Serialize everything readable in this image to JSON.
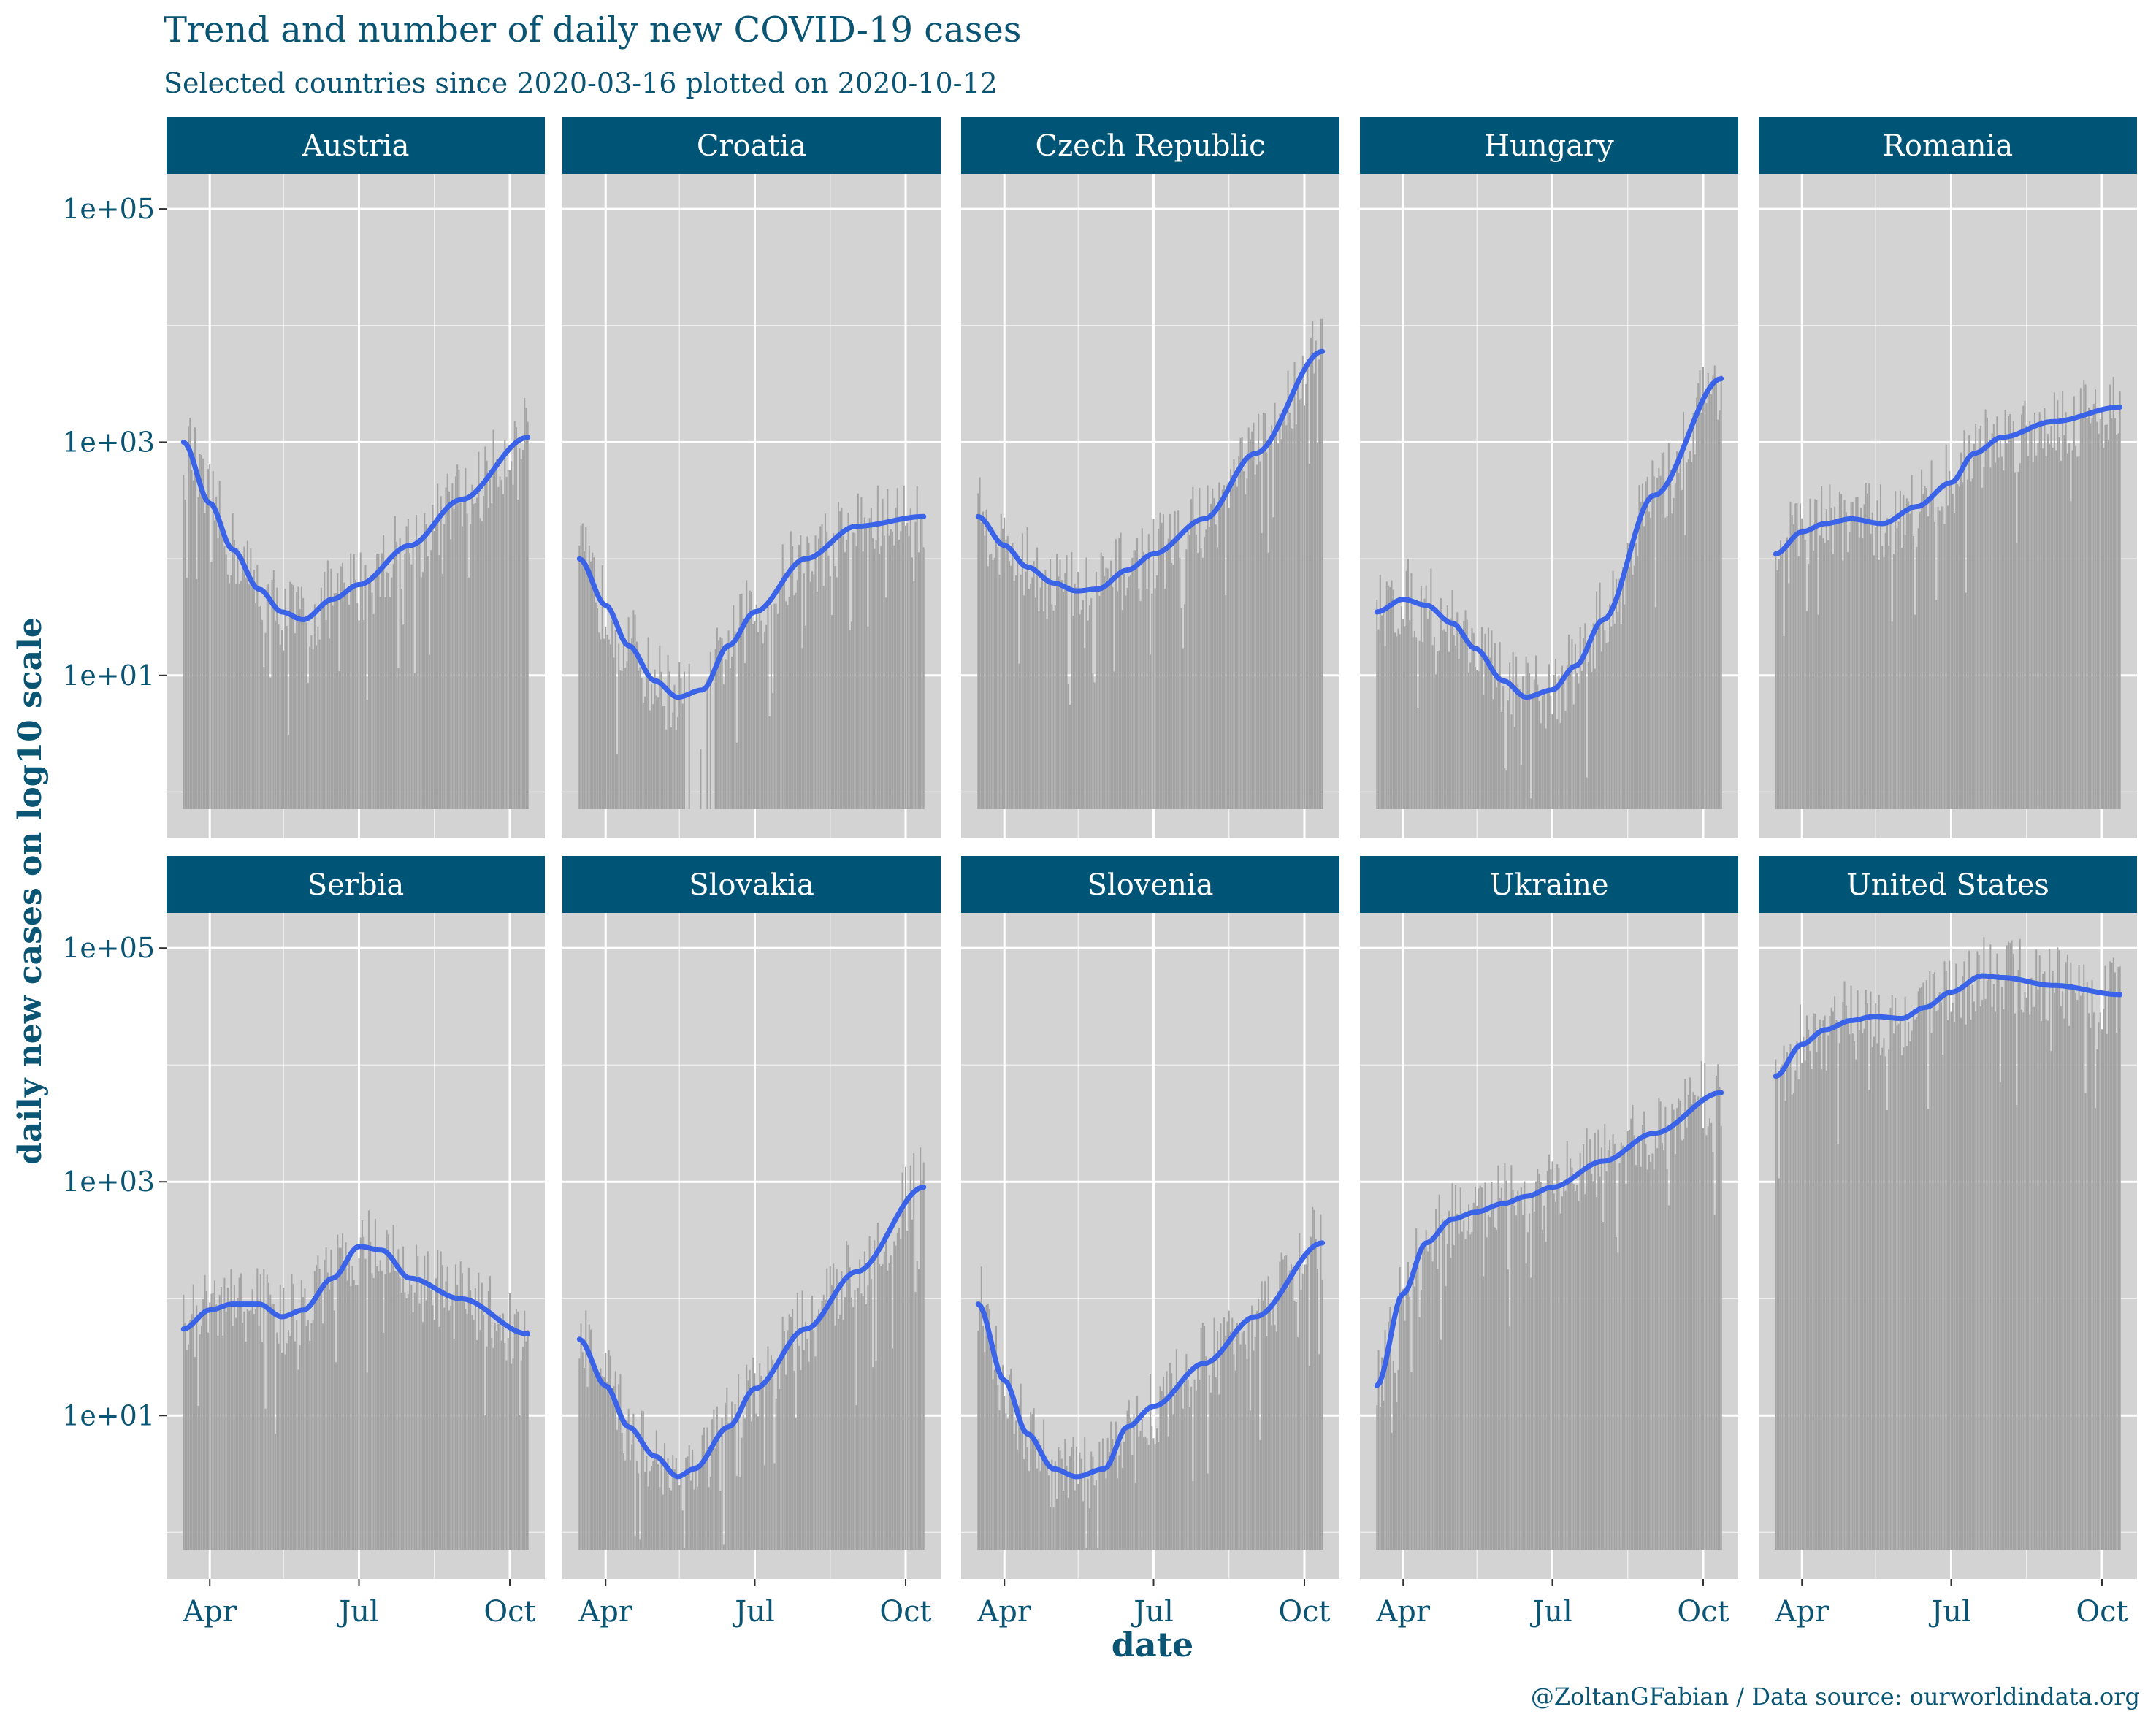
{
  "title": "Trend and number of daily new COVID-19 cases",
  "subtitle": "Selected countries since 2020-03-16 plotted on 2020-10-12",
  "caption": "@ZoltanGFabian / Data source: ourworldindata.org",
  "colors": {
    "strip": "#005576",
    "text": "#0b5574",
    "panel": "#d3d3d3",
    "bar": "#a3a3a3",
    "trend": "#3a63e8",
    "grid": "#ffffff"
  },
  "chart_data": {
    "type": "bar",
    "y_scale": "log10",
    "xlabel": "date",
    "ylabel": "daily new cases on log10 scale",
    "x_range": [
      "2020-03-16",
      "2020-10-12"
    ],
    "ylim": [
      0.4,
      200000
    ],
    "x_ticks": [
      "Apr",
      "Jul",
      "Oct"
    ],
    "y_ticks": [
      "1e+01",
      "1e+03",
      "1e+05"
    ],
    "grid": true,
    "facets": [
      {
        "name": "Austria",
        "trend": [
          [
            "2020-03-16",
            1000
          ],
          [
            "2020-04-01",
            300
          ],
          [
            "2020-04-15",
            120
          ],
          [
            "2020-05-01",
            55
          ],
          [
            "2020-05-15",
            35
          ],
          [
            "2020-05-28",
            30
          ],
          [
            "2020-06-15",
            45
          ],
          [
            "2020-07-01",
            60
          ],
          [
            "2020-08-01",
            130
          ],
          [
            "2020-09-01",
            320
          ],
          [
            "2020-10-12",
            1100
          ]
        ]
      },
      {
        "name": "Croatia",
        "trend": [
          [
            "2020-03-16",
            100
          ],
          [
            "2020-04-01",
            40
          ],
          [
            "2020-04-15",
            18
          ],
          [
            "2020-05-01",
            9
          ],
          [
            "2020-05-15",
            6.5
          ],
          [
            "2020-05-30",
            7.5
          ],
          [
            "2020-06-15",
            18
          ],
          [
            "2020-07-01",
            35
          ],
          [
            "2020-08-01",
            100
          ],
          [
            "2020-09-01",
            190
          ],
          [
            "2020-10-12",
            230
          ]
        ]
      },
      {
        "name": "Czech Republic",
        "trend": [
          [
            "2020-03-16",
            230
          ],
          [
            "2020-04-01",
            130
          ],
          [
            "2020-04-15",
            85
          ],
          [
            "2020-05-01",
            62
          ],
          [
            "2020-05-15",
            53
          ],
          [
            "2020-05-28",
            55
          ],
          [
            "2020-06-15",
            80
          ],
          [
            "2020-07-01",
            110
          ],
          [
            "2020-08-01",
            220
          ],
          [
            "2020-09-01",
            800
          ],
          [
            "2020-10-12",
            6000
          ]
        ]
      },
      {
        "name": "Hungary",
        "trend": [
          [
            "2020-03-16",
            35
          ],
          [
            "2020-04-01",
            45
          ],
          [
            "2020-04-15",
            40
          ],
          [
            "2020-05-01",
            28
          ],
          [
            "2020-05-15",
            17
          ],
          [
            "2020-06-01",
            9
          ],
          [
            "2020-06-15",
            6.5
          ],
          [
            "2020-07-01",
            7.5
          ],
          [
            "2020-07-15",
            12
          ],
          [
            "2020-08-01",
            30
          ],
          [
            "2020-09-01",
            350
          ],
          [
            "2020-10-12",
            3500
          ]
        ]
      },
      {
        "name": "Romania",
        "trend": [
          [
            "2020-03-16",
            110
          ],
          [
            "2020-04-01",
            170
          ],
          [
            "2020-04-15",
            200
          ],
          [
            "2020-05-01",
            220
          ],
          [
            "2020-05-20",
            200
          ],
          [
            "2020-06-10",
            280
          ],
          [
            "2020-07-01",
            450
          ],
          [
            "2020-07-15",
            800
          ],
          [
            "2020-08-01",
            1100
          ],
          [
            "2020-09-01",
            1500
          ],
          [
            "2020-10-12",
            2000
          ]
        ]
      },
      {
        "name": "Serbia",
        "trend": [
          [
            "2020-03-16",
            55
          ],
          [
            "2020-04-01",
            80
          ],
          [
            "2020-04-15",
            90
          ],
          [
            "2020-05-01",
            90
          ],
          [
            "2020-05-15",
            70
          ],
          [
            "2020-05-28",
            80
          ],
          [
            "2020-06-15",
            150
          ],
          [
            "2020-07-01",
            280
          ],
          [
            "2020-07-15",
            260
          ],
          [
            "2020-08-01",
            150
          ],
          [
            "2020-09-01",
            100
          ],
          [
            "2020-10-12",
            50
          ]
        ]
      },
      {
        "name": "Slovakia",
        "trend": [
          [
            "2020-03-16",
            45
          ],
          [
            "2020-04-01",
            18
          ],
          [
            "2020-04-15",
            8
          ],
          [
            "2020-05-01",
            4.5
          ],
          [
            "2020-05-15",
            3
          ],
          [
            "2020-05-25",
            3.5
          ],
          [
            "2020-06-15",
            8
          ],
          [
            "2020-07-01",
            17
          ],
          [
            "2020-08-01",
            55
          ],
          [
            "2020-09-01",
            170
          ],
          [
            "2020-10-12",
            900
          ]
        ]
      },
      {
        "name": "Slovenia",
        "trend": [
          [
            "2020-03-16",
            90
          ],
          [
            "2020-04-01",
            20
          ],
          [
            "2020-04-15",
            7
          ],
          [
            "2020-05-01",
            3.5
          ],
          [
            "2020-05-15",
            3
          ],
          [
            "2020-06-01",
            3.5
          ],
          [
            "2020-06-15",
            8
          ],
          [
            "2020-07-01",
            12
          ],
          [
            "2020-08-01",
            28
          ],
          [
            "2020-09-01",
            70
          ],
          [
            "2020-10-12",
            300
          ]
        ]
      },
      {
        "name": "Ukraine",
        "trend": [
          [
            "2020-03-16",
            18
          ],
          [
            "2020-04-01",
            110
          ],
          [
            "2020-04-15",
            300
          ],
          [
            "2020-05-01",
            480
          ],
          [
            "2020-05-15",
            550
          ],
          [
            "2020-06-01",
            650
          ],
          [
            "2020-06-15",
            750
          ],
          [
            "2020-07-01",
            900
          ],
          [
            "2020-08-01",
            1500
          ],
          [
            "2020-09-01",
            2600
          ],
          [
            "2020-10-12",
            5800
          ]
        ]
      },
      {
        "name": "United States",
        "trend": [
          [
            "2020-03-16",
            8000
          ],
          [
            "2020-04-01",
            15000
          ],
          [
            "2020-04-15",
            20000
          ],
          [
            "2020-05-01",
            24000
          ],
          [
            "2020-05-15",
            26000
          ],
          [
            "2020-06-01",
            25000
          ],
          [
            "2020-06-15",
            31000
          ],
          [
            "2020-07-01",
            42000
          ],
          [
            "2020-07-20",
            58000
          ],
          [
            "2020-08-01",
            56000
          ],
          [
            "2020-09-01",
            48000
          ],
          [
            "2020-10-12",
            40000
          ]
        ]
      }
    ]
  }
}
